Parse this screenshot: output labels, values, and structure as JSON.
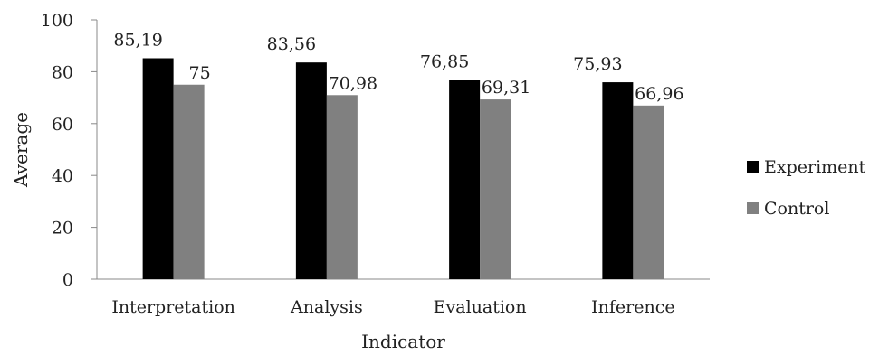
{
  "chart_data": {
    "type": "bar",
    "title": "",
    "xlabel": "Indicator",
    "ylabel": "Average",
    "ylim": [
      0,
      100
    ],
    "yticks": [
      0,
      20,
      40,
      60,
      80,
      100
    ],
    "grid": false,
    "legend_position": "right",
    "categories": [
      "Interpretation",
      "Analysis",
      "Evaluation",
      "Inference"
    ],
    "series": [
      {
        "name": "Experiment",
        "values": [
          85.19,
          83.56,
          76.85,
          75.93
        ],
        "labels": [
          "85,19",
          "83,56",
          "76,85",
          "75,93"
        ],
        "color": "#000000"
      },
      {
        "name": "Control",
        "values": [
          75,
          70.98,
          69.31,
          66.96
        ],
        "labels": [
          "75",
          "70,98",
          "69,31",
          "66,96"
        ],
        "color": "#808080"
      }
    ]
  }
}
